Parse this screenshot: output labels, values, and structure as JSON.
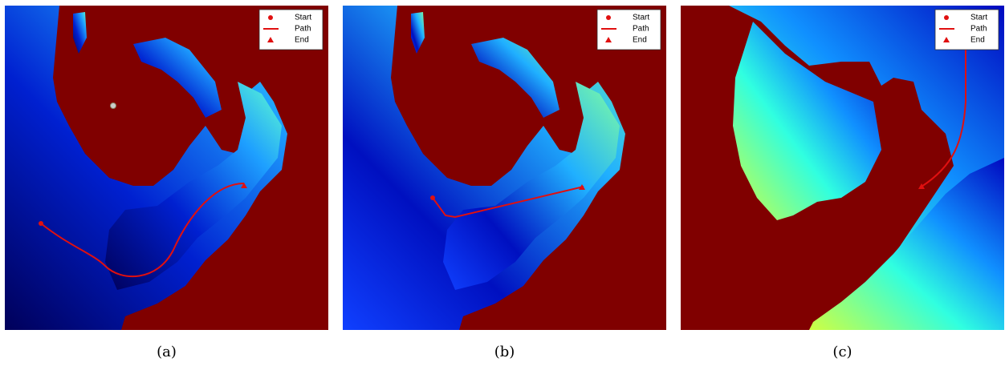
{
  "panels": [
    {
      "caption": "(a)",
      "legend": [
        "Start",
        "Path",
        "End"
      ]
    },
    {
      "caption": "(b)",
      "legend": [
        "Start",
        "Path",
        "End"
      ]
    },
    {
      "caption": "(c)",
      "legend": [
        "Start",
        "Path",
        "End"
      ]
    }
  ]
}
